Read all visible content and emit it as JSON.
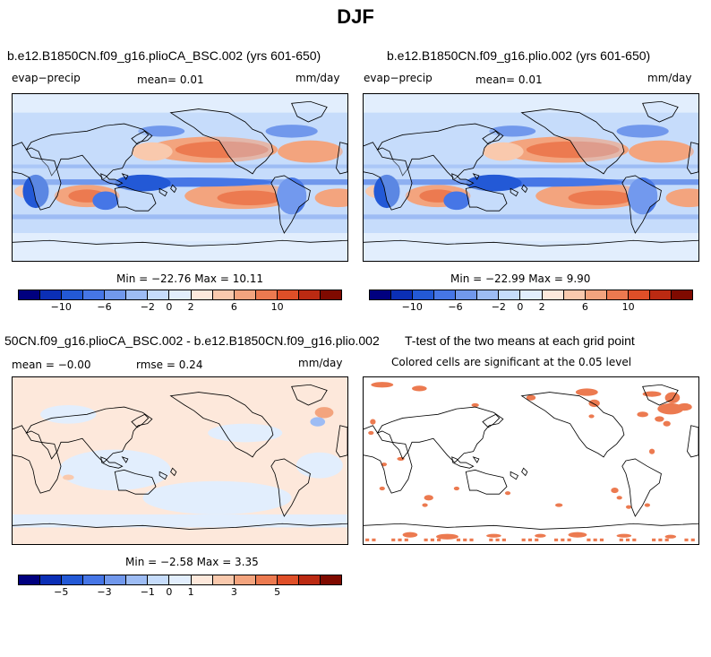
{
  "main_title": "DJF",
  "panels": [
    {
      "title": "b.e12.B1850CN.f09_g16.plioCA_BSC.002 (yrs 601-650)",
      "left_label": "evap−precip",
      "center_label": "mean=    0.01",
      "right_label": "mm/day",
      "minmax": "Min = −22.76 Max =   10.11",
      "map_style": "field"
    },
    {
      "title": "b.e12.B1850CN.f09_g16.plio.002 (yrs 601-650)",
      "left_label": "evap−precip",
      "center_label": "mean=    0.01",
      "right_label": "mm/day",
      "minmax": "Min = −22.99 Max =    9.90",
      "map_style": "field"
    },
    {
      "title": "50CN.f09_g16.plioCA_BSC.002 - b.e12.B1850CN.f09_g16.plio.002",
      "left_label": "mean =  −0.00",
      "center_label": "rmse =    0.24",
      "right_label": "mm/day",
      "minmax": "Min = −2.58 Max =    3.35",
      "map_style": "diff"
    },
    {
      "title": "T-test of the two means at each grid point",
      "left_label": "Colored cells are significant at the 0.05 level",
      "center_label": "",
      "right_label": "",
      "minmax": "",
      "map_style": "ttest"
    }
  ],
  "colorbar_colors": [
    "#00007f",
    "#0b2fb6",
    "#2359d6",
    "#4676e6",
    "#7198ec",
    "#9dbcf4",
    "#c6dcfb",
    "#e2eefd",
    "#fde8db",
    "#f9c9ad",
    "#f3a47e",
    "#ec7a50",
    "#df4f28",
    "#bb2a12",
    "#7f0a00"
  ],
  "colorbars": [
    {
      "ticks": [
        "−10",
        "−6",
        "−2",
        "0",
        "2",
        "6",
        "10"
      ],
      "tick_positions": [
        2,
        4,
        6,
        7,
        8,
        10,
        12
      ]
    },
    {
      "ticks": [
        "−10",
        "−6",
        "−2",
        "0",
        "2",
        "6",
        "10"
      ],
      "tick_positions": [
        2,
        4,
        6,
        7,
        8,
        10,
        12
      ]
    },
    {
      "ticks": [
        "−5",
        "−3",
        "−1",
        "0",
        "1",
        "3",
        "5"
      ],
      "tick_positions": [
        2,
        4,
        6,
        7,
        8,
        10,
        12
      ]
    }
  ]
}
